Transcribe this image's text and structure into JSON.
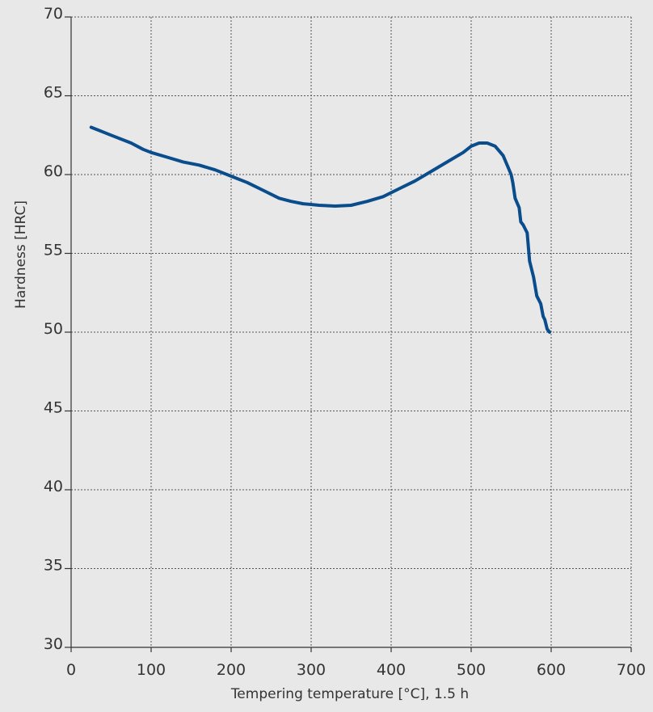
{
  "chart_data": {
    "type": "line",
    "title": "",
    "xlabel": "Tempering temperature [°C], 1.5 h",
    "ylabel": "Hardness [HRC]",
    "xlim": [
      0,
      700
    ],
    "ylim": [
      30,
      70
    ],
    "x_ticks": [
      0,
      100,
      200,
      300,
      400,
      500,
      600,
      700
    ],
    "y_ticks": [
      30,
      35,
      40,
      45,
      50,
      55,
      60,
      65,
      70
    ],
    "grid": true,
    "grid_style": "dotted",
    "colors": {
      "line": "#0a4d8c",
      "grid": "#555555",
      "axis": "#333333",
      "background": "#e8e8e8"
    },
    "series": [
      {
        "x": [
          25,
          50,
          75,
          90,
          100,
          120,
          140,
          160,
          180,
          200,
          220,
          240,
          260,
          275,
          290,
          310,
          330,
          350,
          370,
          390,
          410,
          430,
          450,
          470,
          490,
          500,
          510,
          520,
          530,
          540,
          550,
          552,
          555,
          560,
          562,
          565,
          570,
          573,
          578,
          582,
          587,
          590,
          592,
          595,
          598
        ],
        "y": [
          63.0,
          62.5,
          62.0,
          61.6,
          61.4,
          61.1,
          60.8,
          60.6,
          60.3,
          59.9,
          59.5,
          59.0,
          58.5,
          58.3,
          58.15,
          58.05,
          58.0,
          58.05,
          58.3,
          58.6,
          59.1,
          59.6,
          60.2,
          60.8,
          61.4,
          61.8,
          62.0,
          62.0,
          61.8,
          61.2,
          60.0,
          59.5,
          58.5,
          57.9,
          57.0,
          56.8,
          56.3,
          54.5,
          53.5,
          52.3,
          51.8,
          51.0,
          50.8,
          50.2,
          50.0
        ]
      }
    ]
  }
}
